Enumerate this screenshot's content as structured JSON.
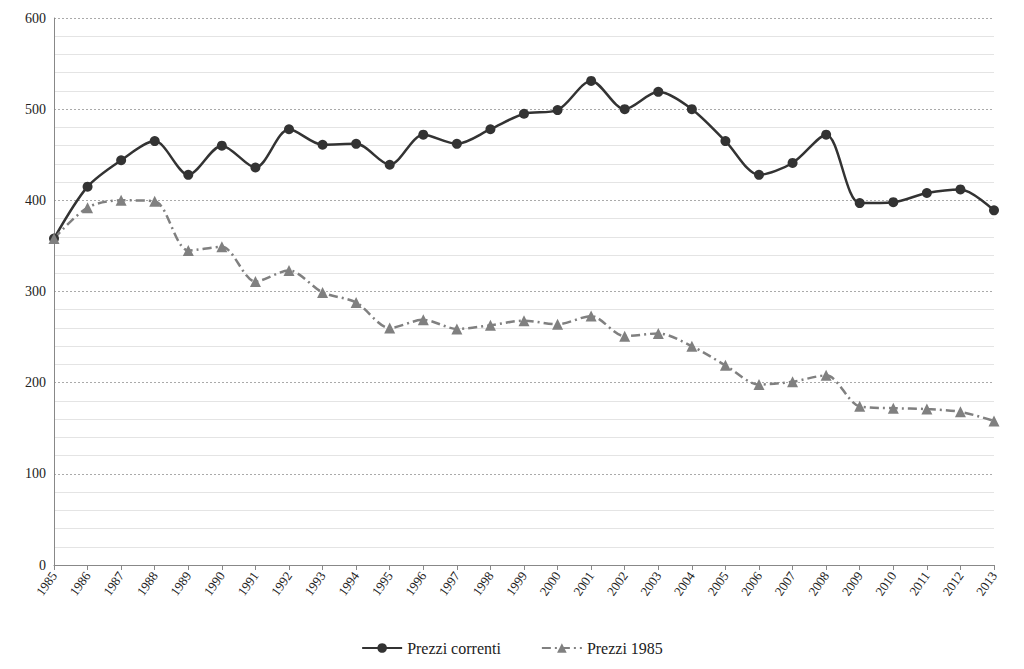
{
  "chart_data": {
    "type": "line",
    "categories": [
      "1985",
      "1986",
      "1987",
      "1988",
      "1989",
      "1990",
      "1991",
      "1992",
      "1993",
      "1994",
      "1995",
      "1996",
      "1997",
      "1998",
      "1999",
      "2000",
      "2001",
      "2002",
      "2003",
      "2004",
      "2005",
      "2006",
      "2007",
      "2008",
      "2009",
      "2010",
      "2011",
      "2012",
      "2013"
    ],
    "series": [
      {
        "name": "Prezzi correnti",
        "color": "#333333",
        "marker": "circle",
        "line_style": "solid",
        "values": [
          358,
          415,
          444,
          465,
          428,
          460,
          436,
          478,
          461,
          462,
          439,
          472,
          462,
          478,
          495,
          499,
          531,
          500,
          519,
          500,
          465,
          428,
          441,
          472,
          397,
          398,
          408,
          412,
          389
        ]
      },
      {
        "name": "Prezzi 1985",
        "color": "#808080",
        "marker": "triangle",
        "line_style": "dashdot",
        "values": [
          358,
          392,
          400,
          399,
          345,
          349,
          311,
          323,
          299,
          288,
          260,
          269,
          259,
          263,
          268,
          264,
          273,
          251,
          254,
          240,
          219,
          198,
          201,
          208,
          174,
          172,
          171,
          168,
          158
        ]
      }
    ],
    "ylim": [
      0,
      600
    ],
    "yticks": [
      0,
      100,
      200,
      300,
      400,
      500,
      600
    ],
    "grid": true,
    "legend": "bottom"
  }
}
